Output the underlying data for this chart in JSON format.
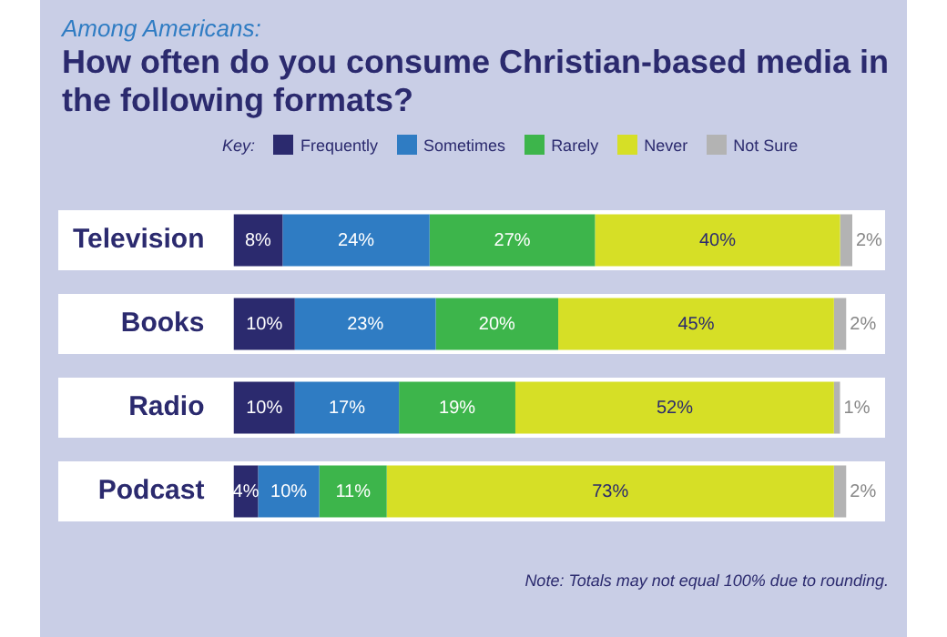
{
  "chart_data": {
    "type": "bar",
    "orientation": "horizontal",
    "stacked": true,
    "subtitle": "Among Americans:",
    "title": "How often do you consume Christian-based media in the following formats?",
    "legend_title": "Key:",
    "legend": "top",
    "categories": [
      "Television",
      "Books",
      "Radio",
      "Podcast"
    ],
    "series": [
      {
        "name": "Frequently",
        "color": "#2b2a6e",
        "values": [
          8,
          10,
          10,
          4
        ],
        "value_labels": [
          "8%",
          "10%",
          "10%",
          "4%"
        ]
      },
      {
        "name": "Sometimes",
        "color": "#2f7cc3",
        "values": [
          24,
          23,
          17,
          10
        ],
        "value_labels": [
          "24%",
          "23%",
          "17%",
          "10%"
        ]
      },
      {
        "name": "Rarely",
        "color": "#3db54b",
        "values": [
          27,
          20,
          19,
          11
        ],
        "value_labels": [
          "27%",
          "20%",
          "19%",
          "11%"
        ]
      },
      {
        "name": "Never",
        "color": "#d6df26",
        "values": [
          40,
          45,
          52,
          73
        ],
        "value_labels": [
          "40%",
          "45%",
          "52%",
          "73%"
        ]
      },
      {
        "name": "Not Sure",
        "color": "#b3b3b3",
        "values": [
          2,
          2,
          1,
          2
        ],
        "value_labels": [
          "2%",
          "2%",
          "1%",
          "2%"
        ]
      }
    ],
    "annotations": [
      "Note: Totals may not equal 100% due to rounding."
    ]
  }
}
